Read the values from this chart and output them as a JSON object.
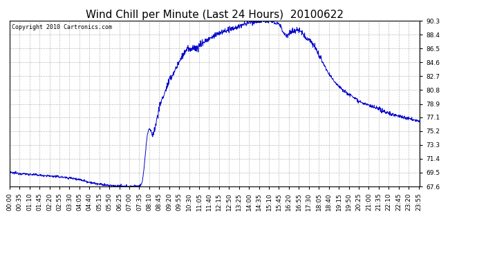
{
  "title": "Wind Chill per Minute (Last 24 Hours)  20100622",
  "copyright_text": "Copyright 2010 Cartronics.com",
  "y_ticks": [
    67.6,
    69.5,
    71.4,
    73.3,
    75.2,
    77.1,
    78.9,
    80.8,
    82.7,
    84.6,
    86.5,
    88.4,
    90.3
  ],
  "ylim": [
    67.6,
    90.3
  ],
  "line_color": "#0000cc",
  "background_color": "#ffffff",
  "grid_color": "#bbbbbb",
  "title_fontsize": 11,
  "tick_fontsize": 6.5,
  "fig_width": 6.9,
  "fig_height": 3.75,
  "dpi": 100
}
